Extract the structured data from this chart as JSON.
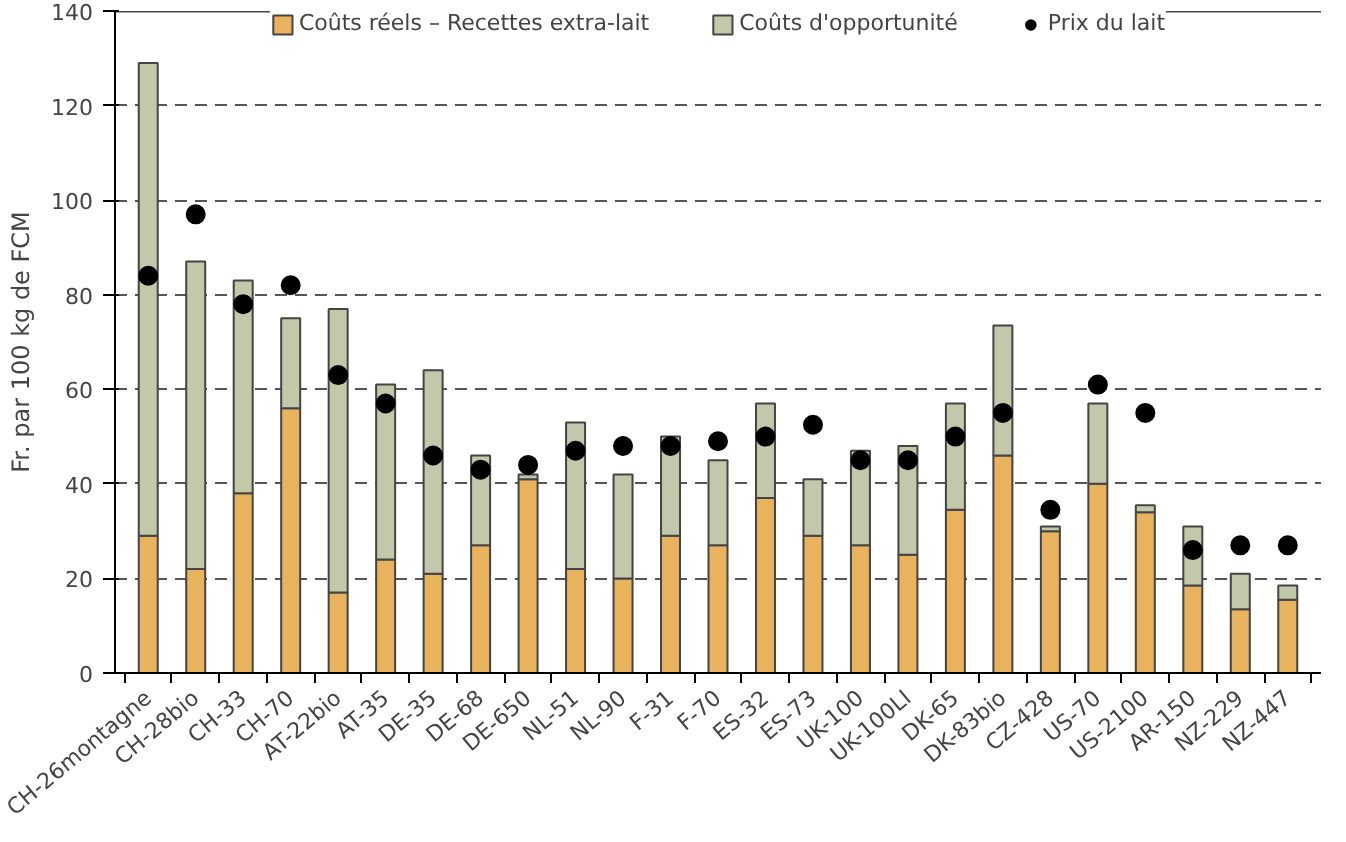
{
  "chart_data": {
    "type": "bar",
    "stacked": true,
    "ylabel": "Fr. par 100 kg de FCM",
    "categories": [
      "CH-26montagne",
      "CH-28bio",
      "CH-33",
      "CH-70",
      "AT-22bio",
      "AT-35",
      "DE-35",
      "DE-68",
      "DE-650",
      "NL-51",
      "NL-90",
      "F-31",
      "F-70",
      "ES-32",
      "ES-73",
      "UK-100",
      "UK-100LI",
      "DK-65",
      "DK-83bio",
      "CZ-428",
      "US-70",
      "US-2100",
      "AR-150",
      "NZ-229",
      "NZ-447"
    ],
    "series": [
      {
        "name": "Coûts réels – Recettes extra-lait",
        "color": "#e8b35c",
        "values": [
          29,
          22,
          38,
          56,
          17,
          24,
          21,
          27,
          41,
          22,
          20,
          29,
          27,
          37,
          29,
          27,
          25,
          34.5,
          46,
          30,
          40,
          34,
          18.5,
          13.5,
          15.5
        ]
      },
      {
        "name": "Coûts d'opportunité",
        "color": "#c4c8aa",
        "values": [
          100,
          65,
          45,
          19,
          60,
          37,
          43,
          19,
          1,
          31,
          22,
          21,
          18,
          20,
          12,
          20,
          23,
          22.5,
          27.5,
          1,
          17,
          1.5,
          12.5,
          7.5,
          3
        ]
      },
      {
        "name": "Prix du lait",
        "type": "scatter",
        "color": "#000000",
        "marker": "circle",
        "values": [
          84,
          97,
          78,
          82,
          63,
          57,
          46,
          43,
          44,
          47,
          48,
          48,
          49,
          50,
          52.5,
          45,
          45,
          50,
          55,
          34.5,
          61,
          55,
          26,
          27,
          27
        ]
      }
    ],
    "ylim": [
      0,
      140
    ],
    "yticks": [
      0,
      20,
      40,
      60,
      80,
      100,
      120,
      140
    ],
    "grid": "y",
    "legend": "top"
  }
}
